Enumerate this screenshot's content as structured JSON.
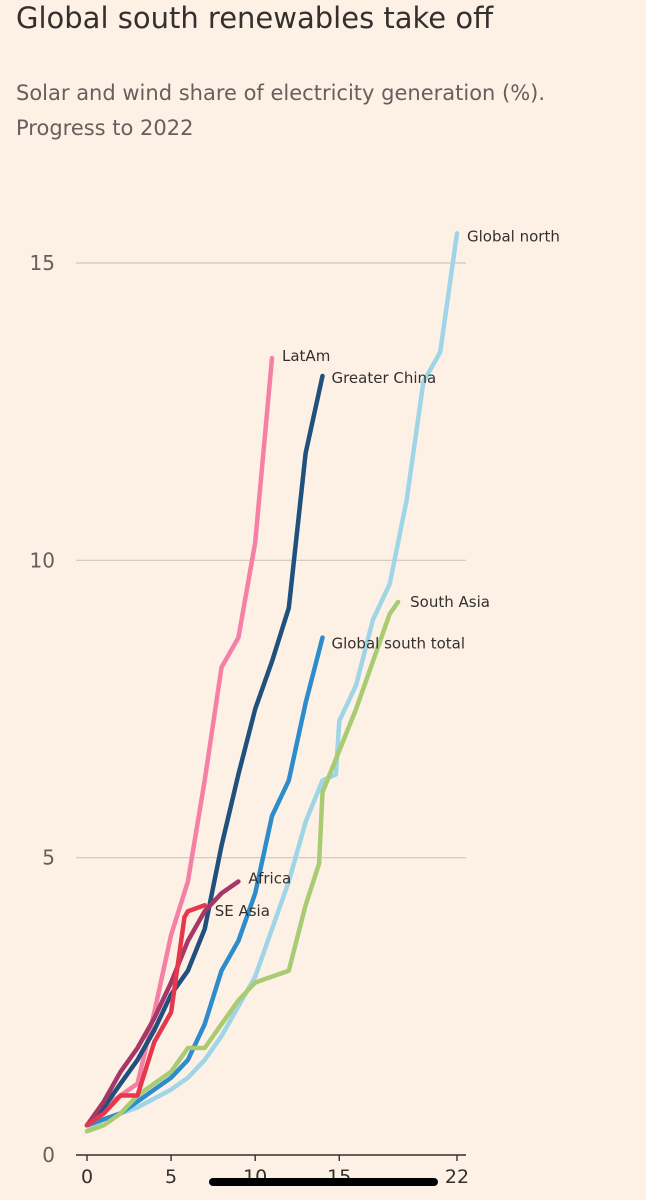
{
  "title": "Global south renewables take off",
  "subtitle": "Solar and wind share of electricity generation (%). Progress to 2022",
  "chart_data": {
    "type": "line",
    "xlabel": "",
    "ylabel": "",
    "xlim": [
      0,
      22
    ],
    "ylim": [
      0,
      15.5
    ],
    "xticks": [
      "0",
      "5",
      "10",
      "15",
      "22"
    ],
    "yticks": [
      "0",
      "5",
      "10",
      "15"
    ],
    "grid": "horizontal",
    "series": [
      {
        "name": "Global north",
        "color": "#9fd5e6",
        "x": [
          0,
          1,
          2,
          3,
          4,
          5,
          6,
          7,
          8,
          9,
          10,
          11,
          12,
          13,
          14,
          14.8,
          15,
          16,
          17,
          18,
          19,
          20,
          21,
          22
        ],
        "y": [
          0.4,
          0.6,
          0.7,
          0.8,
          0.95,
          1.1,
          1.3,
          1.6,
          2.0,
          2.5,
          3.0,
          3.8,
          4.6,
          5.6,
          6.3,
          6.4,
          7.3,
          7.9,
          9.0,
          9.6,
          11.0,
          13.0,
          13.5,
          15.5
        ]
      },
      {
        "name": "LatAm",
        "color": "#f57fa5",
        "x": [
          0,
          1,
          2,
          3,
          4,
          5,
          6,
          7,
          8,
          9,
          10,
          11
        ],
        "y": [
          0.5,
          0.8,
          1.0,
          1.2,
          2.4,
          3.7,
          4.6,
          6.3,
          8.2,
          8.7,
          10.3,
          13.4
        ]
      },
      {
        "name": "Greater China",
        "color": "#20507e",
        "x": [
          0,
          1,
          2,
          3,
          4,
          5,
          6,
          7,
          8,
          9,
          10,
          11,
          12,
          13,
          14
        ],
        "y": [
          0.5,
          0.8,
          1.2,
          1.6,
          2.1,
          2.7,
          3.1,
          3.8,
          5.2,
          6.4,
          7.5,
          8.3,
          9.2,
          11.8,
          13.1
        ]
      },
      {
        "name": "Global south total",
        "color": "#2d8ccc",
        "x": [
          0,
          1,
          2,
          3,
          4,
          5,
          6,
          7,
          8,
          9,
          10,
          11,
          12,
          13,
          14
        ],
        "y": [
          0.5,
          0.6,
          0.7,
          0.9,
          1.1,
          1.3,
          1.6,
          2.2,
          3.1,
          3.6,
          4.4,
          5.7,
          6.3,
          7.6,
          8.7
        ]
      },
      {
        "name": "South Asia",
        "color": "#a9cc72",
        "x": [
          0,
          1,
          2,
          3,
          4,
          5,
          6,
          7,
          8,
          9,
          10,
          11,
          12,
          13,
          13.8,
          14,
          15,
          16,
          17,
          18,
          18.5
        ],
        "y": [
          0.4,
          0.5,
          0.7,
          1.0,
          1.2,
          1.4,
          1.8,
          1.8,
          2.2,
          2.6,
          2.9,
          3.0,
          3.1,
          4.2,
          4.9,
          6.1,
          6.8,
          7.5,
          8.3,
          9.1,
          9.3
        ]
      },
      {
        "name": "Africa",
        "color": "#a63766",
        "x": [
          0,
          1,
          2,
          3,
          4,
          5,
          6,
          7,
          8,
          9
        ],
        "y": [
          0.5,
          0.9,
          1.4,
          1.8,
          2.3,
          2.9,
          3.6,
          4.1,
          4.4,
          4.6
        ]
      },
      {
        "name": "SE Asia",
        "color": "#e5384d",
        "x": [
          0,
          1,
          2,
          3,
          4,
          5,
          5.8,
          6,
          7
        ],
        "y": [
          0.5,
          0.7,
          1.0,
          1.0,
          1.9,
          2.4,
          4.0,
          4.1,
          4.2
        ]
      }
    ]
  }
}
